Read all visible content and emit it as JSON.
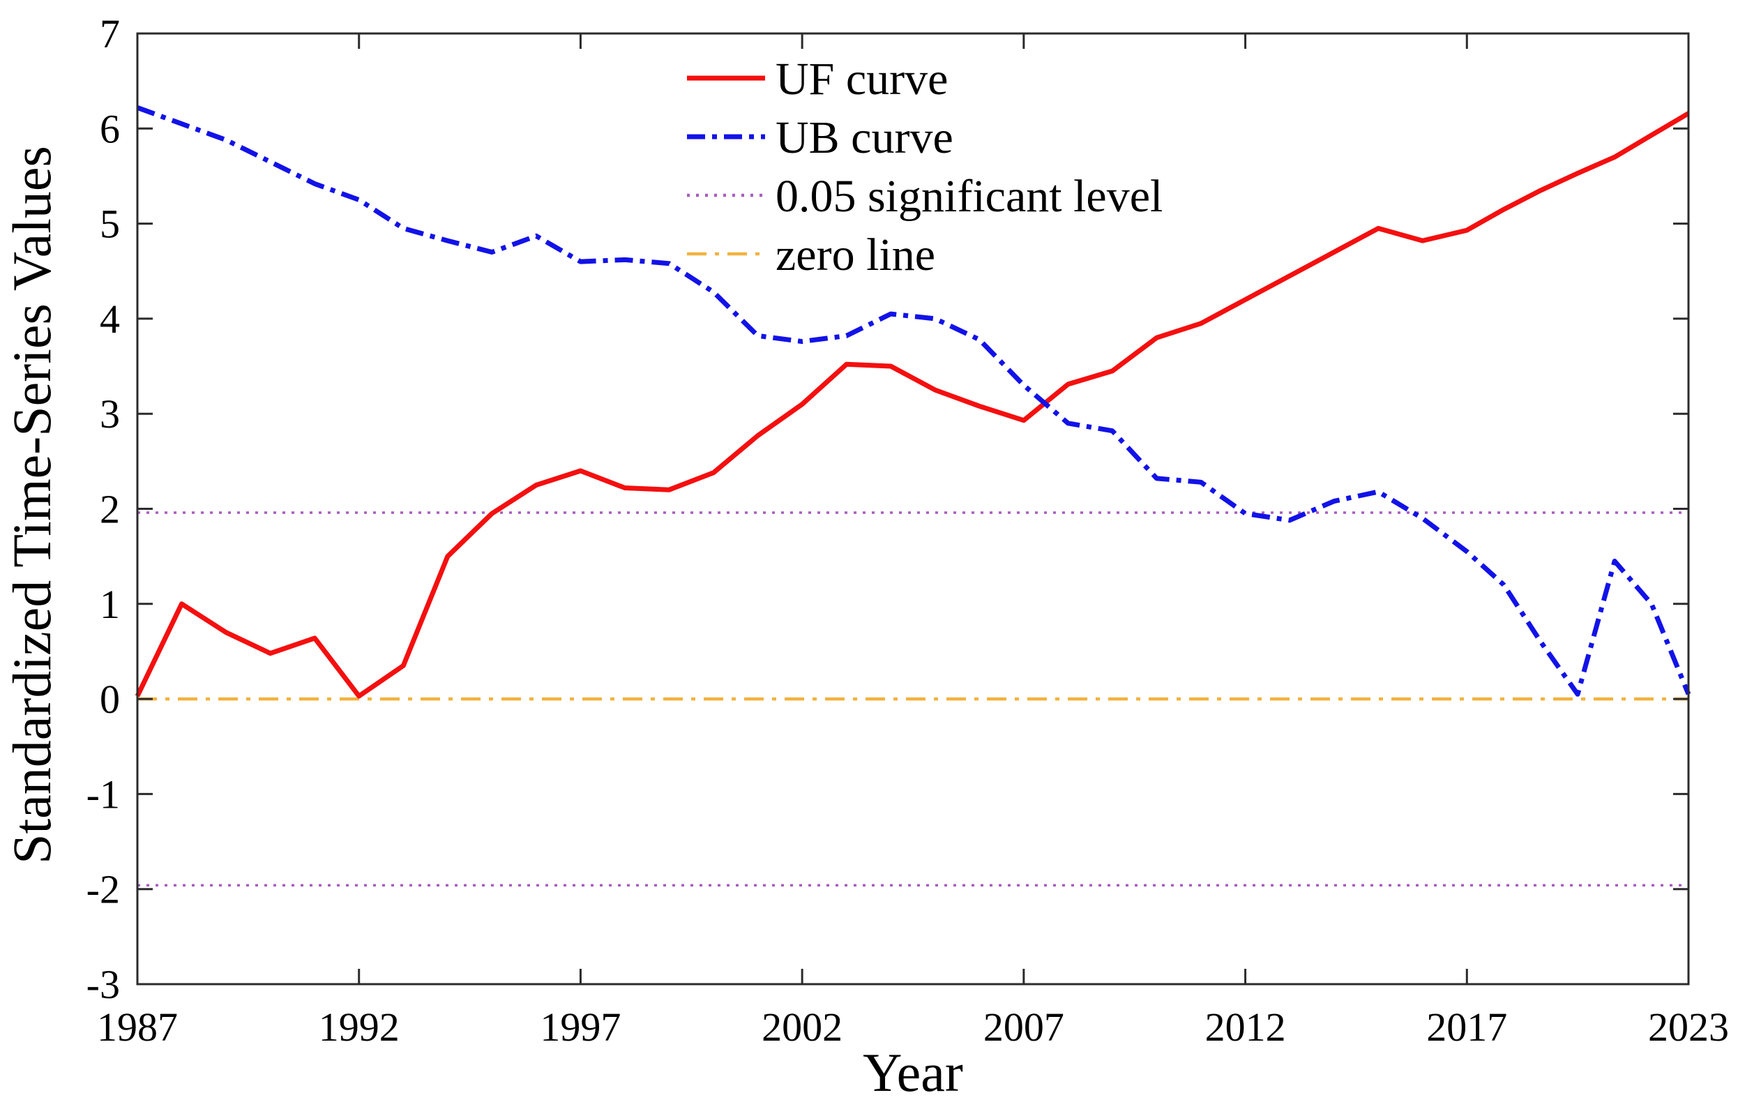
{
  "chart_data": {
    "type": "line",
    "xlabel": "Year",
    "ylabel": "Standardized Time-Series Values",
    "xlim": [
      1987,
      2023
    ],
    "ylim": [
      -3,
      7
    ],
    "grid": false,
    "x_ticks": [
      1987,
      1992,
      1997,
      2002,
      2007,
      2012,
      2017,
      2023
    ],
    "x_ticks_evenly_spaced": true,
    "y_ticks": [
      -3,
      -2,
      -1,
      0,
      1,
      2,
      3,
      4,
      5,
      6,
      7
    ],
    "x": [
      1987,
      1988,
      1989,
      1990,
      1991,
      1992,
      1993,
      1994,
      1995,
      1996,
      1997,
      1998,
      1999,
      2000,
      2001,
      2002,
      2003,
      2004,
      2005,
      2006,
      2007,
      2008,
      2009,
      2010,
      2011,
      2012,
      2013,
      2014,
      2015,
      2016,
      2017,
      2018,
      2019,
      2020,
      2021,
      2022,
      2023
    ],
    "series": [
      {
        "name": "UF curve",
        "color": "#f40f0f",
        "style": "solid",
        "values": [
          0.03,
          1.0,
          0.7,
          0.48,
          0.64,
          0.03,
          0.35,
          1.5,
          1.95,
          2.25,
          2.4,
          2.22,
          2.2,
          2.38,
          2.77,
          3.1,
          3.52,
          3.5,
          3.25,
          3.08,
          2.93,
          3.31,
          3.45,
          3.8,
          3.95,
          4.2,
          4.45,
          4.7,
          4.95,
          4.82,
          4.93,
          5.15,
          5.35,
          5.53,
          5.7,
          5.93,
          6.16
        ]
      },
      {
        "name": "UB curve",
        "color": "#1212e8",
        "style": "dash-dot",
        "values": [
          6.22,
          6.05,
          5.88,
          5.65,
          5.42,
          5.25,
          4.95,
          4.82,
          4.7,
          4.87,
          4.6,
          4.62,
          4.58,
          4.28,
          3.82,
          3.76,
          3.82,
          4.05,
          4.0,
          3.78,
          3.3,
          2.9,
          2.82,
          2.32,
          2.28,
          1.95,
          1.88,
          2.08,
          2.18,
          1.9,
          1.55,
          1.2,
          0.6,
          0.05,
          1.45,
          1.0,
          0.05
        ]
      }
    ],
    "reference_lines": [
      {
        "name": "0.05 significant level",
        "color": "#a95cc0",
        "style": "dotted",
        "values": [
          1.96,
          -1.96
        ]
      },
      {
        "name": "zero line",
        "color": "#f2b23e",
        "style": "dash-dot-fine",
        "values": [
          0
        ]
      }
    ],
    "legend": {
      "position": "top-center",
      "entries": [
        {
          "label": "UF curve",
          "color": "#f40f0f",
          "style": "solid"
        },
        {
          "label": "UB curve",
          "color": "#1212e8",
          "style": "dash-dot"
        },
        {
          "label": "0.05 significant level",
          "color": "#a95cc0",
          "style": "dotted"
        },
        {
          "label": "zero line",
          "color": "#f2b23e",
          "style": "dash-dot-fine"
        }
      ]
    }
  }
}
